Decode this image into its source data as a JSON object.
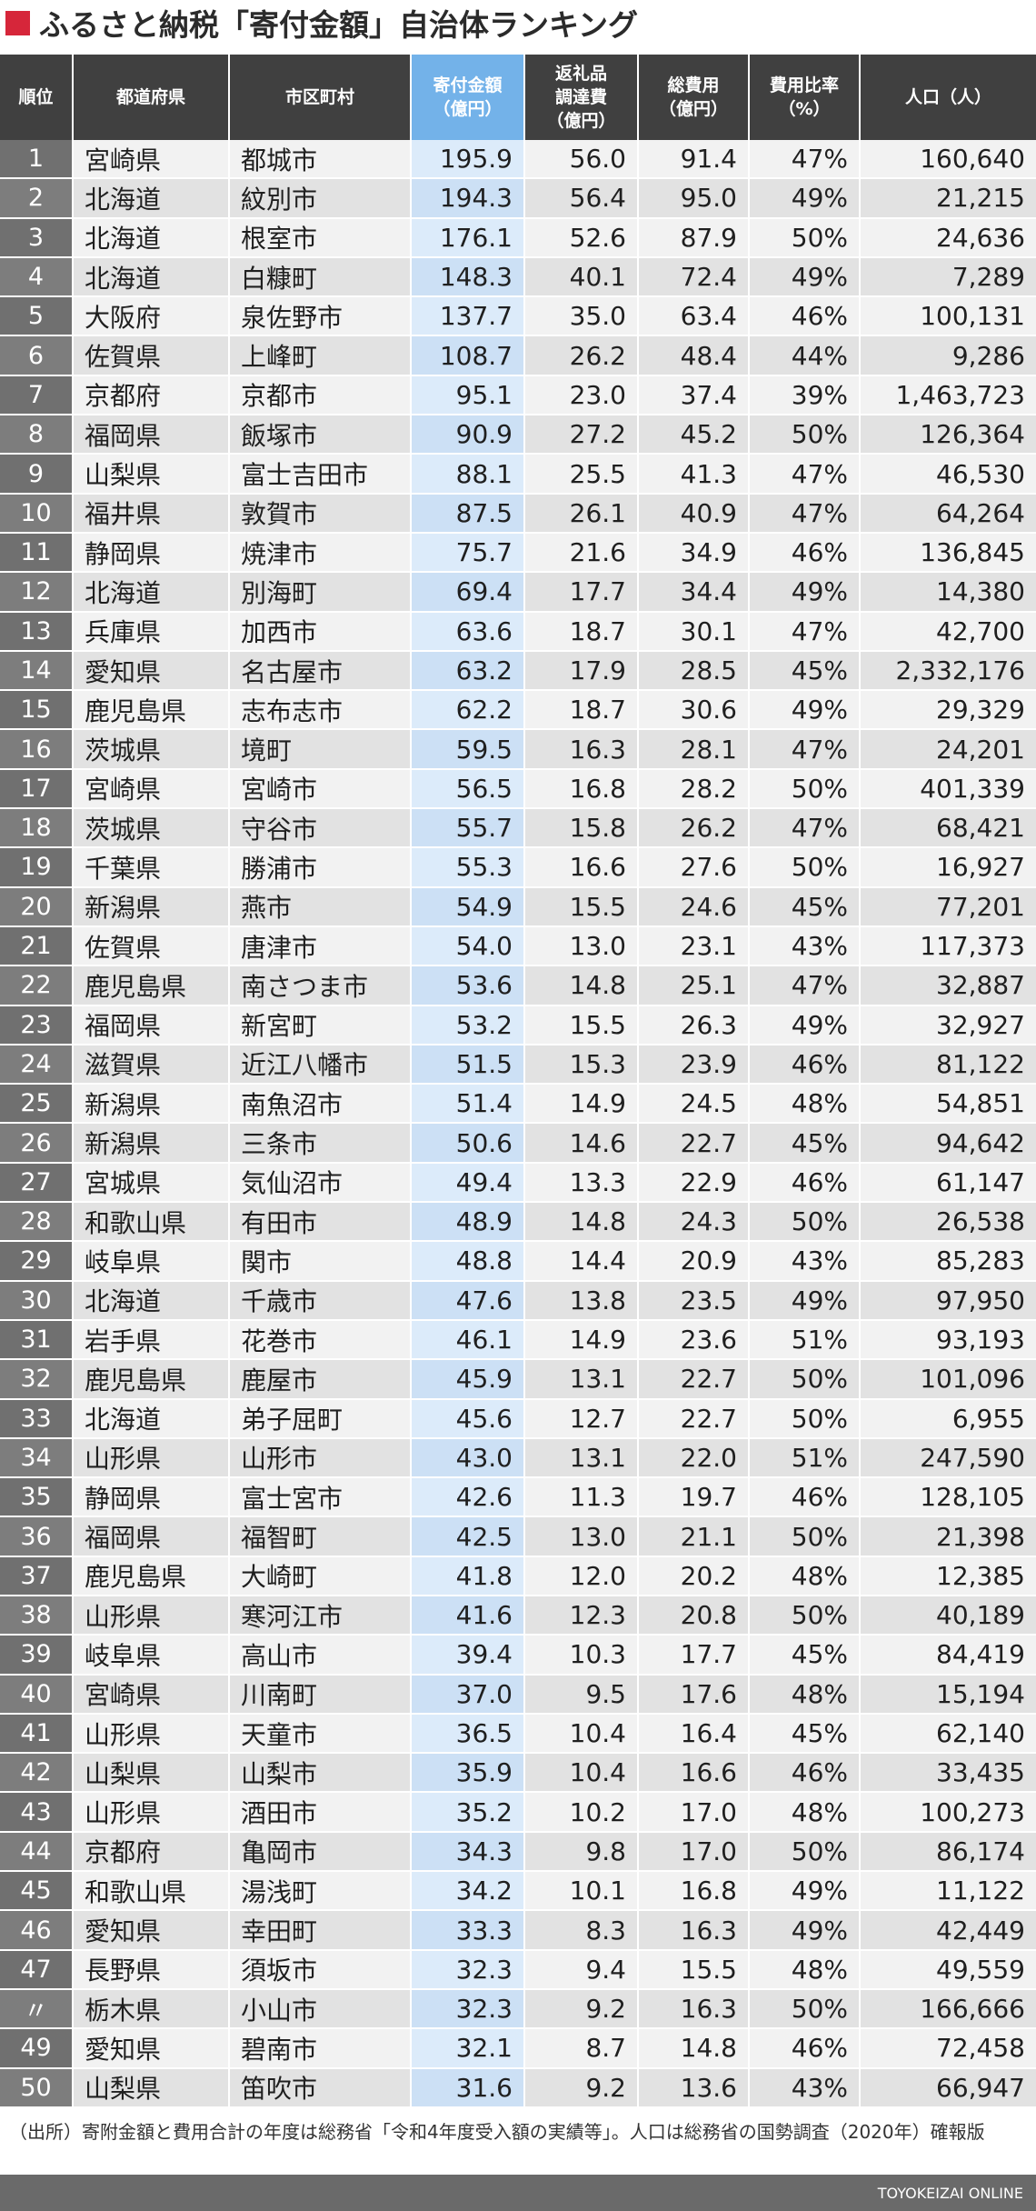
{
  "title": "ふるさと納税「寄付金額」自治体ランキング",
  "headers": {
    "rank": "順位",
    "prefecture": "都道府県",
    "municipality": "市区町村",
    "donation": [
      "寄付金額",
      "（億円）"
    ],
    "gift_cost": [
      "返礼品",
      "調達費",
      "（億円）"
    ],
    "total_cost": [
      "総費用",
      "（億円）"
    ],
    "cost_ratio": [
      "費用比率",
      "（%）"
    ],
    "population": "人口（人）"
  },
  "rows": [
    [
      "1",
      "宮崎県",
      "都城市",
      "195.9",
      "56.0",
      "91.4",
      "47%",
      "160,640"
    ],
    [
      "2",
      "北海道",
      "紋別市",
      "194.3",
      "56.4",
      "95.0",
      "49%",
      "21,215"
    ],
    [
      "3",
      "北海道",
      "根室市",
      "176.1",
      "52.6",
      "87.9",
      "50%",
      "24,636"
    ],
    [
      "4",
      "北海道",
      "白糠町",
      "148.3",
      "40.1",
      "72.4",
      "49%",
      "7,289"
    ],
    [
      "5",
      "大阪府",
      "泉佐野市",
      "137.7",
      "35.0",
      "63.4",
      "46%",
      "100,131"
    ],
    [
      "6",
      "佐賀県",
      "上峰町",
      "108.7",
      "26.2",
      "48.4",
      "44%",
      "9,286"
    ],
    [
      "7",
      "京都府",
      "京都市",
      "95.1",
      "23.0",
      "37.4",
      "39%",
      "1,463,723"
    ],
    [
      "8",
      "福岡県",
      "飯塚市",
      "90.9",
      "27.2",
      "45.2",
      "50%",
      "126,364"
    ],
    [
      "9",
      "山梨県",
      "富士吉田市",
      "88.1",
      "25.5",
      "41.3",
      "47%",
      "46,530"
    ],
    [
      "10",
      "福井県",
      "敦賀市",
      "87.5",
      "26.1",
      "40.9",
      "47%",
      "64,264"
    ],
    [
      "11",
      "静岡県",
      "焼津市",
      "75.7",
      "21.6",
      "34.9",
      "46%",
      "136,845"
    ],
    [
      "12",
      "北海道",
      "別海町",
      "69.4",
      "17.7",
      "34.4",
      "49%",
      "14,380"
    ],
    [
      "13",
      "兵庫県",
      "加西市",
      "63.6",
      "18.7",
      "30.1",
      "47%",
      "42,700"
    ],
    [
      "14",
      "愛知県",
      "名古屋市",
      "63.2",
      "17.9",
      "28.5",
      "45%",
      "2,332,176"
    ],
    [
      "15",
      "鹿児島県",
      "志布志市",
      "62.2",
      "18.7",
      "30.6",
      "49%",
      "29,329"
    ],
    [
      "16",
      "茨城県",
      "境町",
      "59.5",
      "16.3",
      "28.1",
      "47%",
      "24,201"
    ],
    [
      "17",
      "宮崎県",
      "宮崎市",
      "56.5",
      "16.8",
      "28.2",
      "50%",
      "401,339"
    ],
    [
      "18",
      "茨城県",
      "守谷市",
      "55.7",
      "15.8",
      "26.2",
      "47%",
      "68,421"
    ],
    [
      "19",
      "千葉県",
      "勝浦市",
      "55.3",
      "16.6",
      "27.6",
      "50%",
      "16,927"
    ],
    [
      "20",
      "新潟県",
      "燕市",
      "54.9",
      "15.5",
      "24.6",
      "45%",
      "77,201"
    ],
    [
      "21",
      "佐賀県",
      "唐津市",
      "54.0",
      "13.0",
      "23.1",
      "43%",
      "117,373"
    ],
    [
      "22",
      "鹿児島県",
      "南さつま市",
      "53.6",
      "14.8",
      "25.1",
      "47%",
      "32,887"
    ],
    [
      "23",
      "福岡県",
      "新宮町",
      "53.2",
      "15.5",
      "26.3",
      "49%",
      "32,927"
    ],
    [
      "24",
      "滋賀県",
      "近江八幡市",
      "51.5",
      "15.3",
      "23.9",
      "46%",
      "81,122"
    ],
    [
      "25",
      "新潟県",
      "南魚沼市",
      "51.4",
      "14.9",
      "24.5",
      "48%",
      "54,851"
    ],
    [
      "26",
      "新潟県",
      "三条市",
      "50.6",
      "14.6",
      "22.7",
      "45%",
      "94,642"
    ],
    [
      "27",
      "宮城県",
      "気仙沼市",
      "49.4",
      "13.3",
      "22.9",
      "46%",
      "61,147"
    ],
    [
      "28",
      "和歌山県",
      "有田市",
      "48.9",
      "14.8",
      "24.3",
      "50%",
      "26,538"
    ],
    [
      "29",
      "岐阜県",
      "関市",
      "48.8",
      "14.4",
      "20.9",
      "43%",
      "85,283"
    ],
    [
      "30",
      "北海道",
      "千歳市",
      "47.6",
      "13.8",
      "23.5",
      "49%",
      "97,950"
    ],
    [
      "31",
      "岩手県",
      "花巻市",
      "46.1",
      "14.9",
      "23.6",
      "51%",
      "93,193"
    ],
    [
      "32",
      "鹿児島県",
      "鹿屋市",
      "45.9",
      "13.1",
      "22.7",
      "50%",
      "101,096"
    ],
    [
      "33",
      "北海道",
      "弟子屈町",
      "45.6",
      "12.7",
      "22.7",
      "50%",
      "6,955"
    ],
    [
      "34",
      "山形県",
      "山形市",
      "43.0",
      "13.1",
      "22.0",
      "51%",
      "247,590"
    ],
    [
      "35",
      "静岡県",
      "富士宮市",
      "42.6",
      "11.3",
      "19.7",
      "46%",
      "128,105"
    ],
    [
      "36",
      "福岡県",
      "福智町",
      "42.5",
      "13.0",
      "21.1",
      "50%",
      "21,398"
    ],
    [
      "37",
      "鹿児島県",
      "大崎町",
      "41.8",
      "12.0",
      "20.2",
      "48%",
      "12,385"
    ],
    [
      "38",
      "山形県",
      "寒河江市",
      "41.6",
      "12.3",
      "20.8",
      "50%",
      "40,189"
    ],
    [
      "39",
      "岐阜県",
      "高山市",
      "39.4",
      "10.3",
      "17.7",
      "45%",
      "84,419"
    ],
    [
      "40",
      "宮崎県",
      "川南町",
      "37.0",
      "9.5",
      "17.6",
      "48%",
      "15,194"
    ],
    [
      "41",
      "山形県",
      "天童市",
      "36.5",
      "10.4",
      "16.4",
      "45%",
      "62,140"
    ],
    [
      "42",
      "山梨県",
      "山梨市",
      "35.9",
      "10.4",
      "16.6",
      "46%",
      "33,435"
    ],
    [
      "43",
      "山形県",
      "酒田市",
      "35.2",
      "10.2",
      "17.0",
      "48%",
      "100,273"
    ],
    [
      "44",
      "京都府",
      "亀岡市",
      "34.3",
      "9.8",
      "17.0",
      "50%",
      "86,174"
    ],
    [
      "45",
      "和歌山県",
      "湯浅町",
      "34.2",
      "10.1",
      "16.8",
      "49%",
      "11,122"
    ],
    [
      "46",
      "愛知県",
      "幸田町",
      "33.3",
      "8.3",
      "16.3",
      "49%",
      "42,449"
    ],
    [
      "47",
      "長野県",
      "須坂市",
      "32.3",
      "9.4",
      "15.5",
      "48%",
      "49,559"
    ],
    [
      "〃",
      "栃木県",
      "小山市",
      "32.3",
      "9.2",
      "16.3",
      "50%",
      "166,666"
    ],
    [
      "49",
      "愛知県",
      "碧南市",
      "32.1",
      "8.7",
      "14.8",
      "46%",
      "72,458"
    ],
    [
      "50",
      "山梨県",
      "笛吹市",
      "31.6",
      "9.2",
      "13.6",
      "43%",
      "66,947"
    ]
  ],
  "source_note": "（出所）寄附金額と費用合計の年度は総務省「令和4年度受入額の実績等」。人口は総務省の国勢調査（2020年）確報版",
  "footer_brand": "TOYOKEIZAI ONLINE",
  "colors": {
    "title_accent": "#d6263a",
    "header_bg": "#404040",
    "highlight_header": "#73b2e9",
    "highlight_cell": "#dcebfa"
  }
}
